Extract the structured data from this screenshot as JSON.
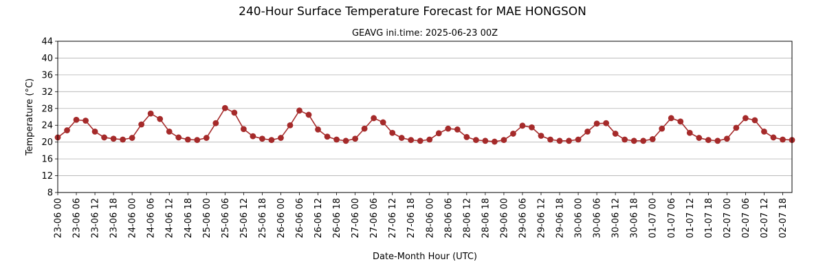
{
  "chart_data": {
    "type": "line",
    "title": "240-Hour Surface Temperature Forecast for MAE HONGSON",
    "subtitle": "GEAVG ini.time: 2025-06-23 00Z",
    "xlabel": "Date-Month Hour (UTC)",
    "ylabel": "Temperature (°C)",
    "ylim": [
      8,
      44
    ],
    "yticks": [
      8,
      12,
      16,
      20,
      24,
      28,
      32,
      36,
      40,
      44
    ],
    "grid": "horizontal",
    "line_color": "#a52a2a",
    "categories": [
      "23-06 00",
      "23-06 03",
      "23-06 06",
      "23-06 09",
      "23-06 12",
      "23-06 15",
      "23-06 18",
      "23-06 21",
      "24-06 00",
      "24-06 03",
      "24-06 06",
      "24-06 09",
      "24-06 12",
      "24-06 15",
      "24-06 18",
      "24-06 21",
      "25-06 00",
      "25-06 03",
      "25-06 06",
      "25-06 09",
      "25-06 12",
      "25-06 15",
      "25-06 18",
      "25-06 21",
      "26-06 00",
      "26-06 03",
      "26-06 06",
      "26-06 09",
      "26-06 12",
      "26-06 15",
      "26-06 18",
      "26-06 21",
      "27-06 00",
      "27-06 03",
      "27-06 06",
      "27-06 09",
      "27-06 12",
      "27-06 15",
      "27-06 18",
      "27-06 21",
      "28-06 00",
      "28-06 03",
      "28-06 06",
      "28-06 09",
      "28-06 12",
      "28-06 15",
      "28-06 18",
      "28-06 21",
      "29-06 00",
      "29-06 03",
      "29-06 06",
      "29-06 09",
      "29-06 12",
      "29-06 15",
      "29-06 18",
      "29-06 21",
      "30-06 00",
      "30-06 03",
      "30-06 06",
      "30-06 09",
      "30-06 12",
      "30-06 15",
      "30-06 18",
      "30-06 21",
      "01-07 00",
      "01-07 03",
      "01-07 06",
      "01-07 09",
      "01-07 12",
      "01-07 15",
      "01-07 18",
      "01-07 21",
      "02-07 00",
      "02-07 03",
      "02-07 06",
      "02-07 09",
      "02-07 12",
      "02-07 15",
      "02-07 18",
      "02-07 21"
    ],
    "xtick_labels": [
      "23-06 00",
      "23-06 06",
      "23-06 12",
      "23-06 18",
      "24-06 00",
      "24-06 06",
      "24-06 12",
      "24-06 18",
      "25-06 00",
      "25-06 06",
      "25-06 12",
      "25-06 18",
      "26-06 00",
      "26-06 06",
      "26-06 12",
      "26-06 18",
      "27-06 00",
      "27-06 06",
      "27-06 12",
      "27-06 18",
      "28-06 00",
      "28-06 06",
      "28-06 12",
      "28-06 18",
      "29-06 00",
      "29-06 06",
      "29-06 12",
      "29-06 18",
      "30-06 00",
      "30-06 06",
      "30-06 12",
      "30-06 18",
      "01-07 00",
      "01-07 06",
      "01-07 12",
      "01-07 18",
      "02-07 00",
      "02-07 06",
      "02-07 12",
      "02-07 18"
    ],
    "series": [
      {
        "values": [
          21.1,
          22.8,
          25.3,
          25.1,
          22.5,
          21.1,
          20.8,
          20.6,
          21.0,
          24.2,
          26.8,
          25.5,
          22.5,
          21.1,
          20.6,
          20.5,
          21.0,
          24.5,
          28.1,
          27.0,
          23.1,
          21.4,
          20.8,
          20.5,
          21.0,
          24.0,
          27.5,
          26.5,
          23.0,
          21.3,
          20.6,
          20.3,
          20.8,
          23.2,
          25.7,
          24.7,
          22.2,
          21.0,
          20.5,
          20.3,
          20.6,
          22.1,
          23.2,
          23.0,
          21.2,
          20.5,
          20.3,
          20.1,
          20.5,
          22.0,
          23.9,
          23.5,
          21.5,
          20.6,
          20.3,
          20.3,
          20.6,
          22.5,
          24.4,
          24.5,
          22.0,
          20.6,
          20.3,
          20.3,
          20.7,
          23.2,
          25.7,
          24.9,
          22.2,
          21.0,
          20.5,
          20.3,
          20.8,
          23.4,
          25.7,
          25.2,
          22.5,
          21.1,
          20.6,
          20.5
        ]
      }
    ]
  }
}
